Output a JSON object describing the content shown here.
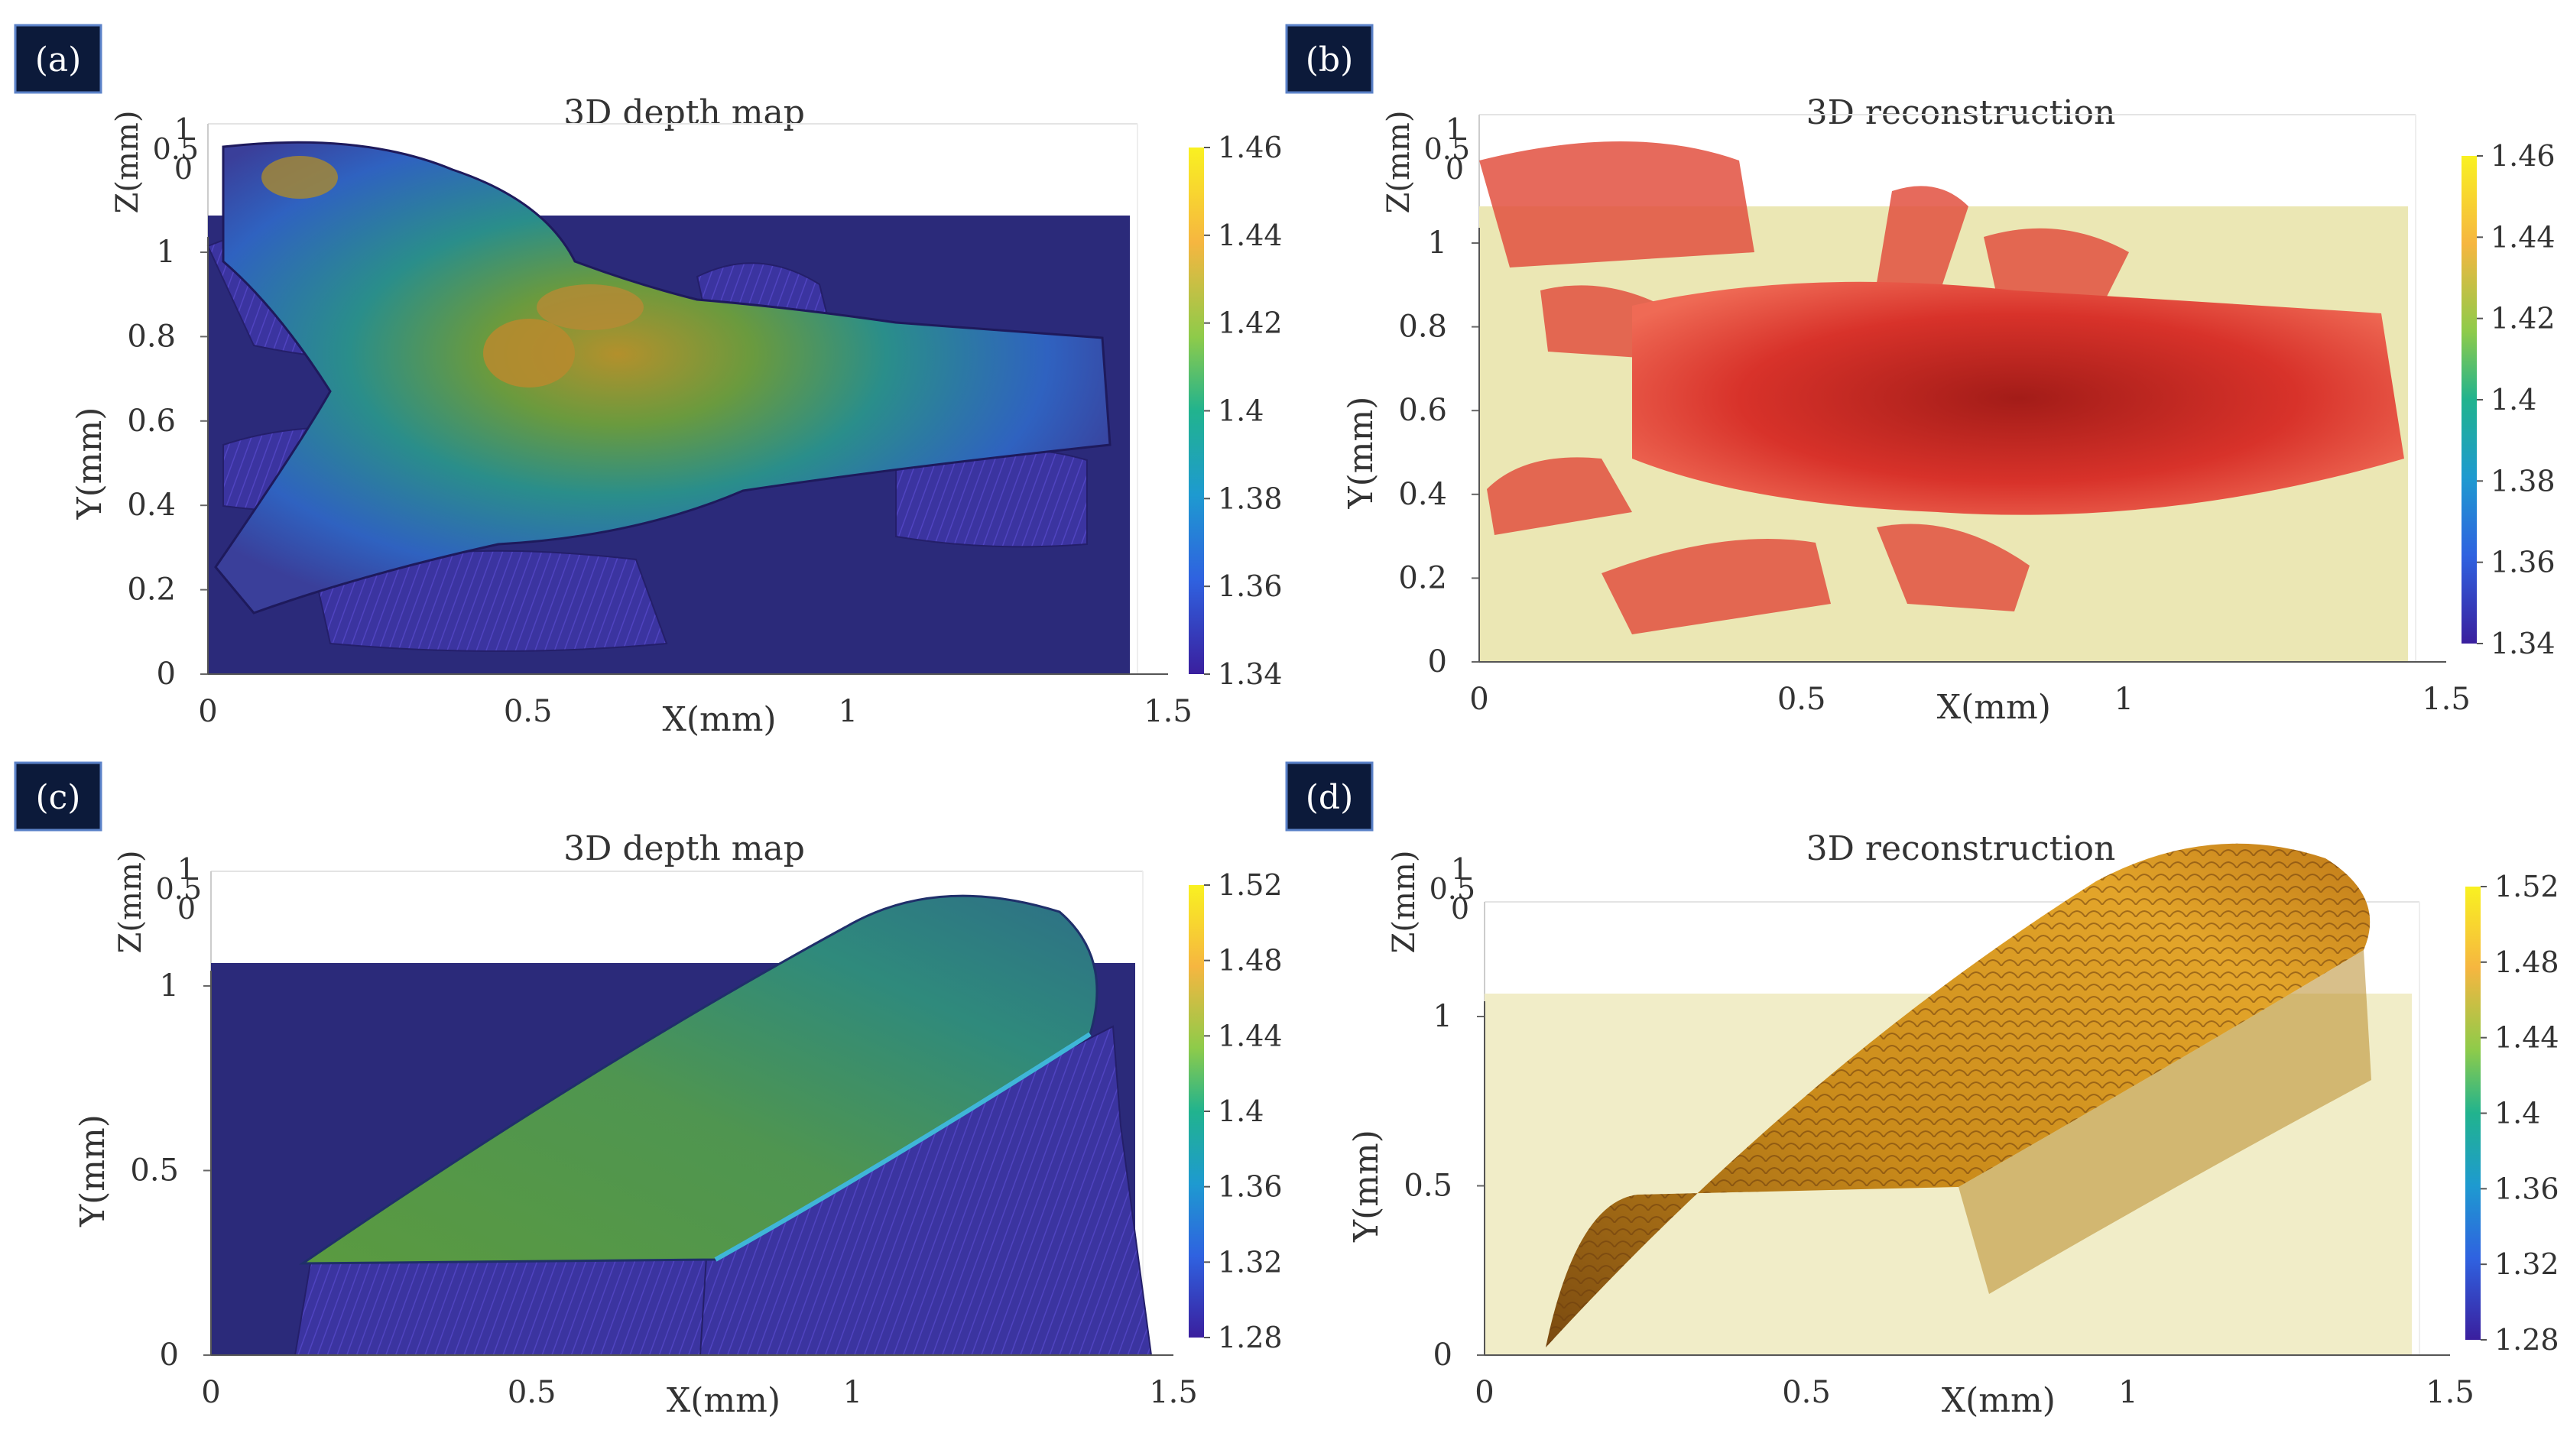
{
  "panels": [
    {
      "id": "a",
      "label": "(a)",
      "title": "3D depth map",
      "style": "depth",
      "xlabel": "X(mm)",
      "ylabel": "Y(mm)",
      "zlabel": "Z(mm)",
      "xticks": [
        "0",
        "0.5",
        "1",
        "1.5"
      ],
      "yticks": [
        "0",
        "0.2",
        "0.4",
        "0.6",
        "0.8",
        "1"
      ],
      "zticks": [
        "1",
        "0.5",
        "0"
      ],
      "colorbar": {
        "min": 1.34,
        "max": 1.46,
        "ticks": [
          "1.46",
          "1.44",
          "1.42",
          "1.4",
          "1.38",
          "1.36",
          "1.34"
        ]
      },
      "colors": {
        "background": "#2b2a7a",
        "surface_low": "#3a3f9a",
        "surface_mid": "#2f8f8a",
        "surface_high": "#b78a2a"
      }
    },
    {
      "id": "b",
      "label": "(b)",
      "title": "3D reconstruction",
      "style": "recon-red",
      "xlabel": "X(mm)",
      "ylabel": "Y(mm)",
      "zlabel": "Z(mm)",
      "xticks": [
        "0",
        "0.5",
        "1",
        "1.5"
      ],
      "yticks": [
        "0",
        "0.2",
        "0.4",
        "0.6",
        "0.8",
        "1"
      ],
      "zticks": [
        "1",
        "0.5",
        "0"
      ],
      "colorbar": {
        "min": 1.34,
        "max": 1.46,
        "ticks": [
          "1.46",
          "1.44",
          "1.42",
          "1.4",
          "1.38",
          "1.36",
          "1.34"
        ]
      },
      "colors": {
        "background": "#ebe7b4",
        "surface": "#d8322a",
        "surface_dark": "#b3201c"
      }
    },
    {
      "id": "c",
      "label": "(c)",
      "title": "3D depth map",
      "style": "depth",
      "xlabel": "X(mm)",
      "ylabel": "Y(mm)",
      "zlabel": "Z(mm)",
      "xticks": [
        "0",
        "0.5",
        "1",
        "1.5"
      ],
      "yticks": [
        "0",
        "0.5",
        "1"
      ],
      "zticks": [
        "1",
        "0.5",
        "0"
      ],
      "colorbar": {
        "min": 1.28,
        "max": 1.52,
        "ticks": [
          "1.52",
          "1.48",
          "1.44",
          "1.4",
          "1.36",
          "1.32",
          "1.28"
        ]
      },
      "colors": {
        "background": "#2b2a7a",
        "surface_low": "#2e6b88",
        "surface_mid": "#3b8f6a",
        "surface_high": "#6f8f3a"
      }
    },
    {
      "id": "d",
      "label": "(d)",
      "title": "3D reconstruction",
      "style": "recon-gold",
      "xlabel": "X(mm)",
      "ylabel": "Y(mm)",
      "zlabel": "Z(mm)",
      "xticks": [
        "0",
        "0.5",
        "1",
        "1.5"
      ],
      "yticks": [
        "0",
        "0.5",
        "1"
      ],
      "zticks": [
        "1",
        "0.5",
        "0"
      ],
      "colorbar": {
        "min": 1.28,
        "max": 1.52,
        "ticks": [
          "1.52",
          "1.48",
          "1.44",
          "1.4",
          "1.36",
          "1.32",
          "1.28"
        ]
      },
      "colors": {
        "background": "#f1edc8",
        "surface": "#c98a1a",
        "surface_dark": "#7a4a10"
      }
    }
  ],
  "chart_data": [
    {
      "type": "heatmap",
      "title": "3D depth map",
      "xlabel": "X(mm)",
      "ylabel": "Y(mm)",
      "zlabel": "Z(mm)",
      "xlim": [
        0,
        1.5
      ],
      "ylim": [
        0,
        1.1
      ],
      "zlim": [
        0,
        1
      ],
      "color_range": [
        1.34,
        1.46
      ]
    },
    {
      "type": "heatmap",
      "title": "3D reconstruction",
      "xlabel": "X(mm)",
      "ylabel": "Y(mm)",
      "zlabel": "Z(mm)",
      "xlim": [
        0,
        1.5
      ],
      "ylim": [
        0,
        1.1
      ],
      "zlim": [
        0,
        1
      ],
      "color_range": [
        1.34,
        1.46
      ]
    },
    {
      "type": "heatmap",
      "title": "3D depth map",
      "xlabel": "X(mm)",
      "ylabel": "Y(mm)",
      "zlabel": "Z(mm)",
      "xlim": [
        0,
        1.5
      ],
      "ylim": [
        0,
        1.1
      ],
      "zlim": [
        0,
        1
      ],
      "color_range": [
        1.28,
        1.52
      ]
    },
    {
      "type": "heatmap",
      "title": "3D reconstruction",
      "xlabel": "X(mm)",
      "ylabel": "Y(mm)",
      "zlabel": "Z(mm)",
      "xlim": [
        0,
        1.5
      ],
      "ylim": [
        0,
        1.1
      ],
      "zlim": [
        0,
        1
      ],
      "color_range": [
        1.28,
        1.52
      ]
    }
  ]
}
